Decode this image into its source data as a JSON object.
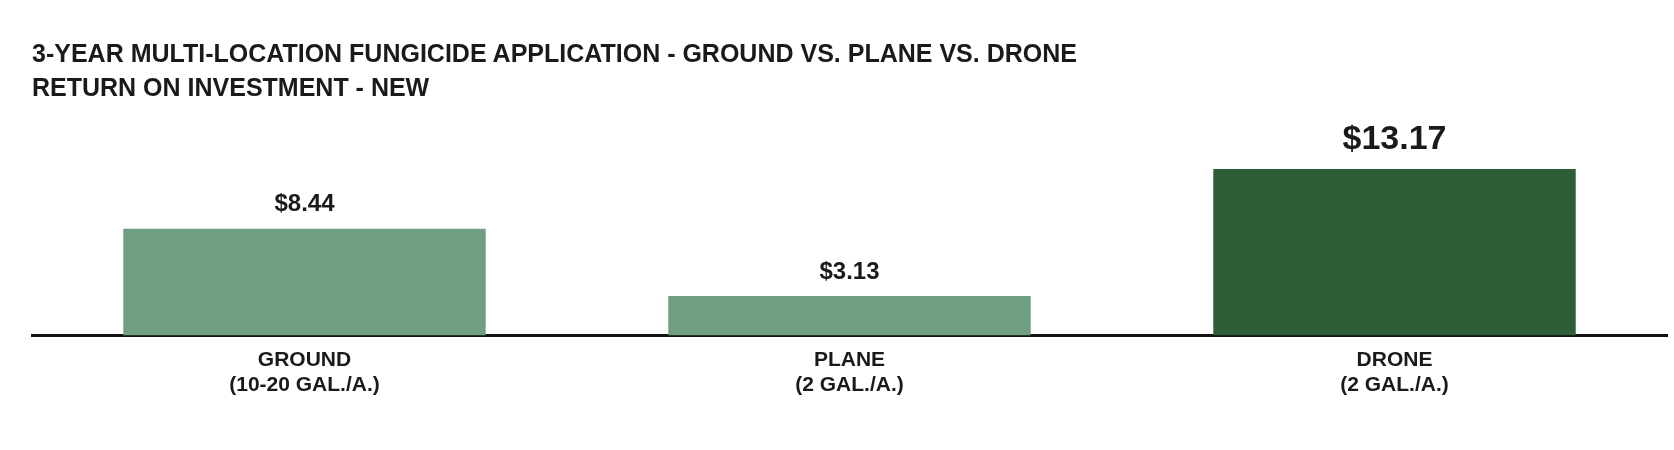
{
  "chart_data": {
    "type": "bar",
    "title": "3-YEAR MULTI-LOCATION FUNGICIDE APPLICATION - GROUND VS. PLANE VS. DRONE",
    "subtitle": "RETURN ON INVESTMENT - NEW",
    "categories": [
      "GROUND\n(10-20 GAL./A.)",
      "PLANE\n(2 GAL./A.)",
      "DRONE\n(2 GAL./A.)"
    ],
    "values": [
      8.44,
      3.13,
      13.17
    ],
    "colors": [
      "#6f9e80",
      "#6f9e80",
      "#2d5e37"
    ],
    "value_labels": [
      "$8.44",
      "$3.13",
      "$13.17"
    ],
    "grid": false,
    "legend": false
  }
}
